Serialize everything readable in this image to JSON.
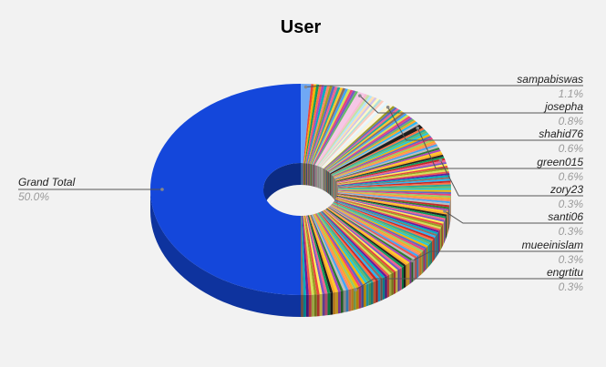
{
  "chart_data": {
    "type": "pie",
    "style": "3d-donut",
    "title": "User",
    "labeled_slices": [
      {
        "name": "Grand Total",
        "value": 50.0,
        "label": "50.0%"
      },
      {
        "name": "sampabiswas",
        "value": 1.1,
        "label": "1.1%"
      },
      {
        "name": "josepha",
        "value": 0.8,
        "label": "0.8%"
      },
      {
        "name": "shahid76",
        "value": 0.6,
        "label": "0.6%"
      },
      {
        "name": "green015",
        "value": 0.6,
        "label": "0.6%"
      },
      {
        "name": "zory23",
        "value": 0.3,
        "label": "0.3%"
      },
      {
        "name": "santi06",
        "value": 0.3,
        "label": "0.3%"
      },
      {
        "name": "mueeinislam",
        "value": 0.3,
        "label": "0.3%"
      },
      {
        "name": "engrtitu",
        "value": 0.3,
        "label": "0.3%"
      }
    ],
    "unlabeled_slices_total": 45.7,
    "unlabeled_slice_count": 160,
    "colors": {
      "grand_total": "#1447db",
      "background": "#f2f2f2",
      "leader_line": "#555555",
      "percent_text": "#9a9a9a"
    },
    "legend": "none"
  }
}
